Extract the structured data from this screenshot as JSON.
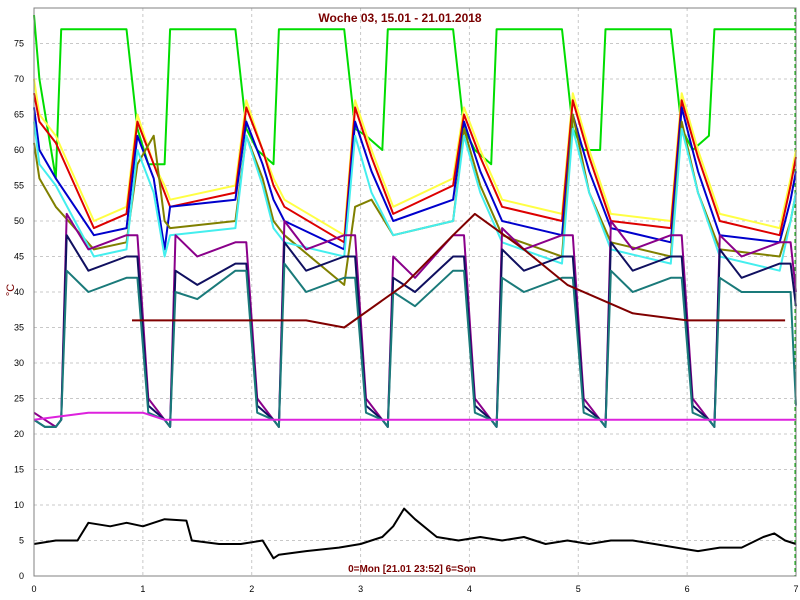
{
  "chart_data": {
    "type": "line",
    "title": "Woche 03, 15.01 - 21.01.2018",
    "footer": "0=Mon [21.01 23:52] 6=Son",
    "ylabel": "°C",
    "xlabel": "",
    "xlim": [
      0,
      7
    ],
    "ylim": [
      0,
      80
    ],
    "xticks": [
      "0",
      "1",
      "2",
      "3",
      "4",
      "5",
      "6",
      "7"
    ],
    "yticks": [
      "0",
      "5",
      "10",
      "15",
      "20",
      "25",
      "30",
      "35",
      "40",
      "45",
      "50",
      "55",
      "60",
      "65",
      "70",
      "75"
    ],
    "grid": true,
    "legend": "none",
    "series": [
      {
        "color": "#00dd00",
        "x": [
          0,
          0.05,
          0.2,
          0.25,
          0.85,
          0.95,
          1.05,
          1.2,
          1.25,
          1.85,
          1.95,
          2.05,
          2.2,
          2.25,
          2.85,
          2.95,
          3.05,
          3.2,
          3.25,
          3.85,
          3.95,
          4.05,
          4.2,
          4.25,
          4.85,
          4.95,
          5.05,
          5.2,
          5.25,
          5.85,
          5.95,
          6.05,
          6.2,
          6.25,
          6.85,
          6.95,
          7
        ],
        "y": [
          79,
          70,
          56,
          77,
          77,
          63,
          58,
          58,
          77,
          77,
          63,
          60,
          58,
          77,
          77,
          63,
          62,
          60,
          77,
          77,
          63,
          60,
          58,
          77,
          77,
          63,
          60,
          60,
          77,
          77,
          63,
          60,
          62,
          77,
          77,
          77,
          77
        ]
      },
      {
        "color": "#ffff44",
        "x": [
          0,
          0.05,
          0.2,
          0.55,
          0.85,
          0.95,
          1.1,
          1.2,
          1.25,
          1.85,
          1.95,
          2.1,
          2.2,
          2.3,
          2.85,
          2.95,
          3.1,
          3.3,
          3.85,
          3.95,
          4.1,
          4.3,
          4.85,
          4.95,
          5.1,
          5.3,
          5.85,
          5.95,
          6.1,
          6.3,
          6.85,
          6.95,
          7
        ],
        "y": [
          70,
          65,
          62,
          50,
          52,
          65,
          58,
          55,
          53,
          55,
          67,
          60,
          56,
          53,
          48,
          67,
          60,
          52,
          56,
          66,
          60,
          53,
          51,
          68,
          60,
          51,
          50,
          68,
          60,
          51,
          49,
          56,
          60
        ]
      },
      {
        "color": "#dd0000",
        "x": [
          0,
          0.05,
          0.2,
          0.55,
          0.85,
          0.95,
          1.1,
          1.2,
          1.25,
          1.85,
          1.95,
          2.1,
          2.2,
          2.3,
          2.85,
          2.95,
          3.1,
          3.3,
          3.85,
          3.95,
          4.1,
          4.3,
          4.85,
          4.95,
          5.1,
          5.3,
          5.85,
          5.95,
          6.1,
          6.3,
          6.85,
          6.95,
          7
        ],
        "y": [
          68,
          64,
          61,
          49,
          51,
          64,
          58,
          54,
          52,
          54,
          66,
          60,
          55,
          52,
          47,
          66,
          59,
          51,
          55,
          65,
          59,
          52,
          50,
          67,
          59,
          50,
          49,
          67,
          59,
          50,
          48,
          55,
          59
        ]
      },
      {
        "color": "#0000cc",
        "x": [
          0,
          0.05,
          0.2,
          0.55,
          0.85,
          0.95,
          1.1,
          1.2,
          1.25,
          1.85,
          1.95,
          2.1,
          2.2,
          2.3,
          2.85,
          2.95,
          3.1,
          3.3,
          3.85,
          3.95,
          4.1,
          4.3,
          4.85,
          4.95,
          5.1,
          5.3,
          5.85,
          5.95,
          6.1,
          6.3,
          6.85,
          6.95,
          7
        ],
        "y": [
          66,
          60,
          56,
          48,
          49,
          62,
          56,
          46,
          52,
          53,
          64,
          58,
          53,
          50,
          46,
          64,
          57,
          50,
          53,
          64,
          57,
          50,
          48,
          65,
          57,
          49,
          47,
          66,
          57,
          48,
          47,
          53,
          57
        ]
      },
      {
        "color": "#808000",
        "x": [
          0,
          0.05,
          0.2,
          0.55,
          0.85,
          0.95,
          1.1,
          1.2,
          1.25,
          1.85,
          1.95,
          2.1,
          2.2,
          2.3,
          2.85,
          2.95,
          3.1,
          3.3,
          3.85,
          3.95,
          4.1,
          4.3,
          4.85,
          4.95,
          5.1,
          5.3,
          5.85,
          5.95,
          6.1,
          6.3,
          6.85,
          6.95,
          7
        ],
        "y": [
          61,
          56,
          52,
          46,
          47,
          58,
          62,
          50,
          49,
          50,
          62,
          56,
          50,
          48,
          41,
          52,
          53,
          48,
          50,
          63,
          55,
          48,
          45,
          65,
          54,
          47,
          45,
          64,
          54,
          46,
          45,
          50,
          54
        ]
      },
      {
        "color": "#44eeee",
        "x": [
          0,
          0.05,
          0.2,
          0.55,
          0.85,
          0.95,
          1.1,
          1.2,
          1.25,
          1.85,
          1.95,
          2.1,
          2.2,
          2.3,
          2.85,
          2.95,
          3.1,
          3.3,
          3.85,
          3.95,
          4.1,
          4.3,
          4.85,
          4.95,
          5.1,
          5.3,
          5.85,
          5.95,
          6.1,
          6.3,
          6.85,
          6.95,
          7
        ],
        "y": [
          64,
          58,
          55,
          45,
          46,
          60,
          54,
          45,
          48,
          49,
          62,
          55,
          49,
          47,
          45,
          62,
          54,
          48,
          50,
          62,
          54,
          47,
          44,
          63,
          54,
          46,
          44,
          63,
          54,
          45,
          43,
          50,
          54
        ]
      },
      {
        "color": "#8a008a",
        "x": [
          0,
          0.1,
          0.2,
          0.25,
          0.3,
          0.5,
          0.85,
          0.95,
          1.05,
          1.2,
          1.25,
          1.3,
          1.5,
          1.85,
          1.95,
          2.05,
          2.2,
          2.25,
          2.3,
          2.5,
          2.85,
          2.95,
          3.05,
          3.2,
          3.25,
          3.3,
          3.5,
          3.85,
          3.95,
          4.05,
          4.2,
          4.25,
          4.3,
          4.5,
          4.85,
          4.95,
          5.05,
          5.2,
          5.25,
          5.3,
          5.5,
          5.85,
          5.95,
          6.05,
          6.2,
          6.25,
          6.3,
          6.5,
          6.85,
          6.95,
          7
        ],
        "y": [
          23,
          22,
          21,
          22,
          51,
          46,
          48,
          48,
          25,
          22,
          21,
          48,
          45,
          47,
          47,
          25,
          22,
          21,
          50,
          46,
          48,
          48,
          25,
          22,
          21,
          45,
          42,
          48,
          48,
          25,
          22,
          21,
          49,
          46,
          48,
          48,
          25,
          22,
          21,
          50,
          46,
          48,
          48,
          25,
          22,
          21,
          48,
          45,
          47,
          47,
          40
        ]
      },
      {
        "color": "#101060",
        "x": [
          0,
          0.1,
          0.2,
          0.25,
          0.3,
          0.5,
          0.85,
          0.95,
          1.05,
          1.2,
          1.25,
          1.3,
          1.5,
          1.85,
          1.95,
          2.05,
          2.2,
          2.25,
          2.3,
          2.5,
          2.85,
          2.95,
          3.05,
          3.2,
          3.25,
          3.3,
          3.5,
          3.85,
          3.95,
          4.05,
          4.2,
          4.25,
          4.3,
          4.5,
          4.85,
          4.95,
          5.05,
          5.2,
          5.25,
          5.3,
          5.5,
          5.85,
          5.95,
          6.05,
          6.2,
          6.25,
          6.3,
          6.5,
          6.85,
          6.95,
          7
        ],
        "y": [
          22,
          21,
          21,
          22,
          48,
          43,
          45,
          45,
          24,
          22,
          21,
          43,
          41,
          44,
          44,
          24,
          22,
          21,
          47,
          43,
          45,
          45,
          24,
          22,
          21,
          42,
          40,
          45,
          45,
          24,
          22,
          21,
          46,
          43,
          45,
          45,
          24,
          22,
          21,
          47,
          43,
          45,
          45,
          24,
          22,
          21,
          46,
          42,
          44,
          44,
          38
        ]
      },
      {
        "color": "#1a7a7a",
        "x": [
          0,
          0.1,
          0.2,
          0.25,
          0.3,
          0.5,
          0.85,
          0.95,
          1.05,
          1.2,
          1.25,
          1.3,
          1.5,
          1.85,
          1.95,
          2.05,
          2.2,
          2.25,
          2.3,
          2.5,
          2.85,
          2.95,
          3.05,
          3.2,
          3.25,
          3.3,
          3.5,
          3.85,
          3.95,
          4.05,
          4.2,
          4.25,
          4.3,
          4.5,
          4.85,
          4.95,
          5.05,
          5.2,
          5.25,
          5.3,
          5.5,
          5.85,
          5.95,
          6.05,
          6.2,
          6.25,
          6.3,
          6.5,
          6.85,
          6.95,
          7
        ],
        "y": [
          22,
          21,
          21,
          22,
          43,
          40,
          42,
          42,
          23,
          22,
          21,
          40,
          39,
          43,
          43,
          23,
          22,
          21,
          44,
          40,
          42,
          42,
          23,
          22,
          21,
          40,
          38,
          43,
          43,
          23,
          22,
          21,
          42,
          40,
          42,
          42,
          23,
          22,
          21,
          43,
          40,
          42,
          42,
          23,
          22,
          21,
          42,
          40,
          40,
          40,
          24
        ]
      },
      {
        "color": "#800000",
        "x": [
          0.9,
          1.5,
          2.0,
          2.5,
          2.85,
          3.4,
          3.85,
          4.05,
          4.5,
          4.9,
          5.5,
          6.0,
          6.5,
          6.9
        ],
        "y": [
          36,
          36,
          36,
          36,
          35,
          41,
          48,
          51,
          46,
          41,
          37,
          36,
          36,
          36
        ]
      },
      {
        "color": "#dd22dd",
        "x": [
          0,
          0.5,
          1.0,
          1.2,
          1.5,
          2.0,
          2.5,
          3.0,
          3.5,
          4.0,
          4.5,
          5.0,
          5.5,
          6.0,
          6.5,
          7.0
        ],
        "y": [
          22,
          23,
          23,
          22,
          22,
          22,
          22,
          22,
          22,
          22,
          22,
          22,
          22,
          22,
          22,
          22
        ]
      },
      {
        "color": "#000000",
        "x": [
          0,
          0.2,
          0.4,
          0.5,
          0.7,
          0.85,
          1.0,
          1.2,
          1.4,
          1.45,
          1.7,
          1.9,
          2.1,
          2.2,
          2.25,
          2.5,
          2.8,
          3.0,
          3.2,
          3.3,
          3.4,
          3.5,
          3.7,
          3.9,
          4.1,
          4.3,
          4.5,
          4.7,
          4.9,
          5.1,
          5.3,
          5.5,
          5.7,
          5.9,
          6.1,
          6.3,
          6.5,
          6.7,
          6.8,
          6.9,
          7.0
        ],
        "y": [
          4.5,
          5,
          5,
          7.5,
          7,
          7.5,
          7,
          8,
          7.8,
          5,
          4.5,
          4.5,
          5,
          2.5,
          3,
          3.5,
          4,
          4.5,
          5.5,
          7,
          9.5,
          8,
          5.5,
          5,
          5.5,
          5,
          5.5,
          4.5,
          5,
          4.5,
          5,
          5,
          4.5,
          4,
          3.5,
          4,
          4,
          5.5,
          6,
          5,
          4.5
        ]
      }
    ]
  }
}
